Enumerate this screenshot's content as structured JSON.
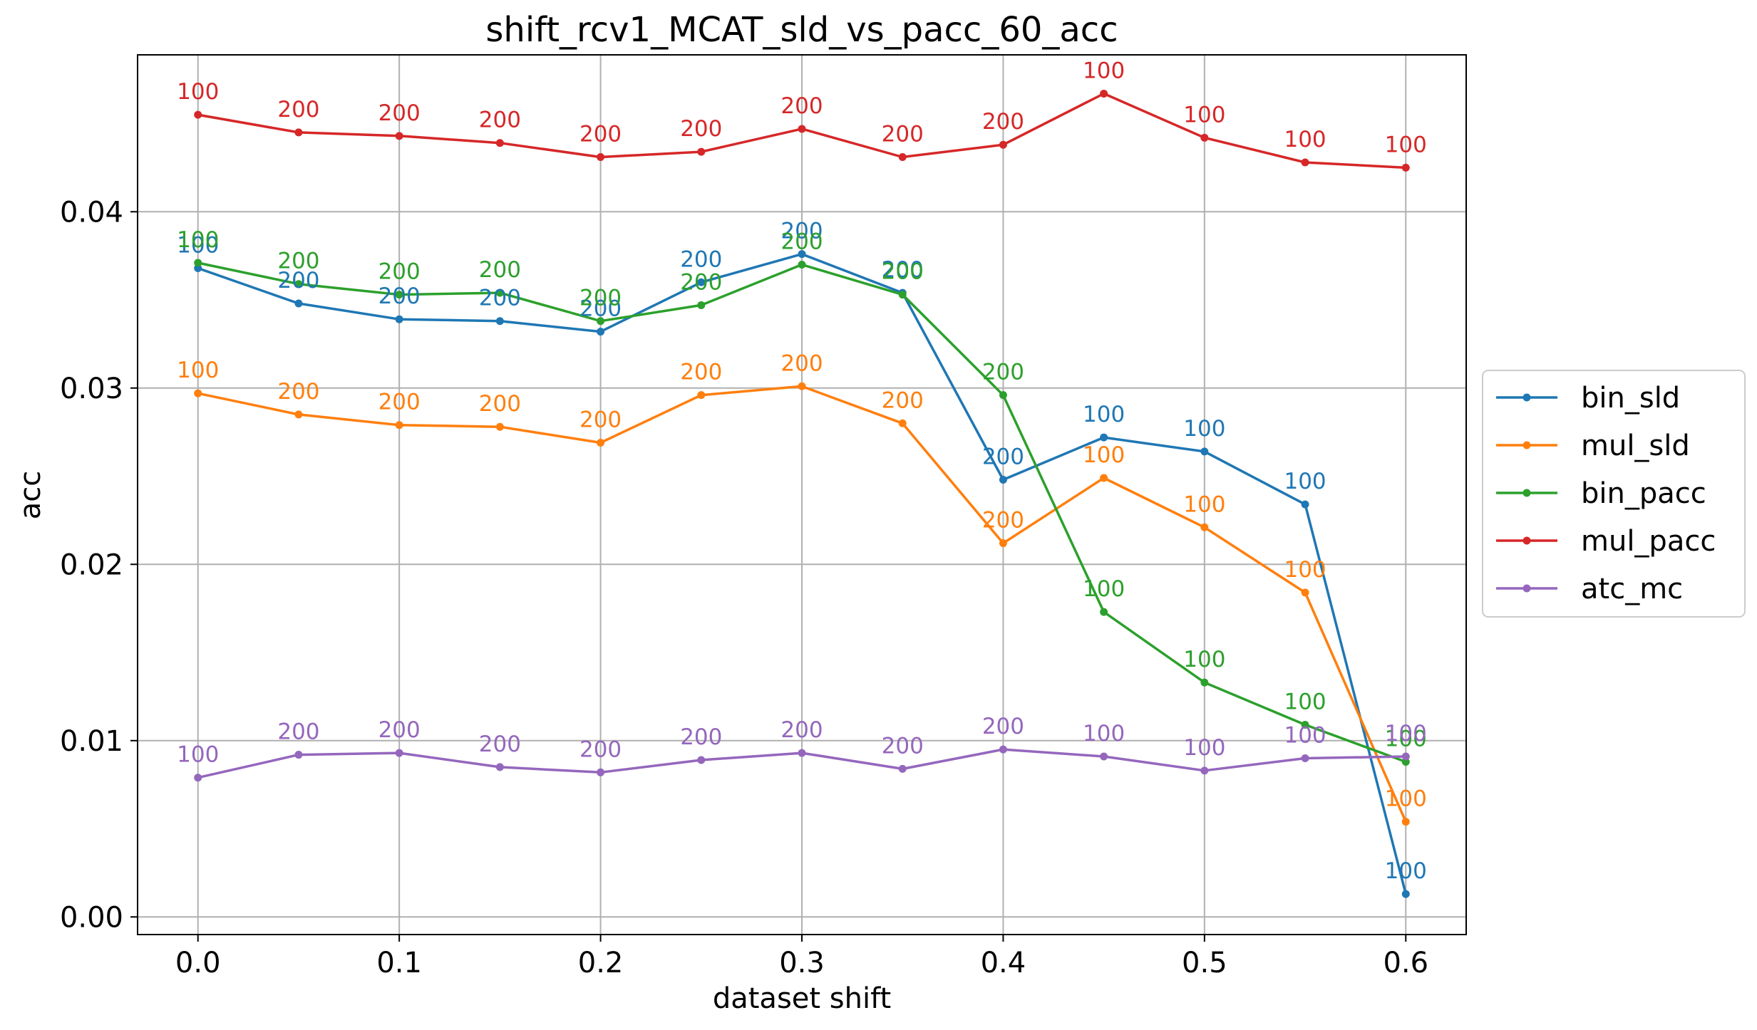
{
  "chart_data": {
    "type": "line",
    "title": "shift_rcv1_MCAT_sld_vs_pacc_60_acc",
    "xlabel": "dataset shift",
    "ylabel": "acc",
    "x": [
      0.0,
      0.05,
      0.1,
      0.15,
      0.2,
      0.25,
      0.3,
      0.35,
      0.4,
      0.45,
      0.5,
      0.55,
      0.6
    ],
    "xlim": [
      -0.03,
      0.63
    ],
    "ylim": [
      -0.001,
      0.0489
    ],
    "xticks": [
      0.0,
      0.1,
      0.2,
      0.3,
      0.4,
      0.5,
      0.6
    ],
    "xtick_labels": [
      "0.0",
      "0.1",
      "0.2",
      "0.3",
      "0.4",
      "0.5",
      "0.6"
    ],
    "yticks": [
      0.0,
      0.01,
      0.02,
      0.03,
      0.04
    ],
    "ytick_labels": [
      "0.00",
      "0.01",
      "0.02",
      "0.03",
      "0.04"
    ],
    "grid": true,
    "legend_position": "outside-right",
    "series": [
      {
        "name": "bin_sld",
        "color": "#1f77b4",
        "values": [
          0.0368,
          0.0348,
          0.0339,
          0.0338,
          0.0332,
          0.036,
          0.0376,
          0.0354,
          0.0248,
          0.0272,
          0.0264,
          0.0234,
          0.0013
        ],
        "labels": [
          "100",
          "200",
          "200",
          "200",
          "200",
          "200",
          "200",
          "200",
          "200",
          "100",
          "100",
          "100",
          "100"
        ]
      },
      {
        "name": "mul_sld",
        "color": "#ff7f0e",
        "values": [
          0.0297,
          0.0285,
          0.0279,
          0.0278,
          0.0269,
          0.0296,
          0.0301,
          0.028,
          0.0212,
          0.0249,
          0.0221,
          0.0184,
          0.0054
        ],
        "labels": [
          "100",
          "200",
          "200",
          "200",
          "200",
          "200",
          "200",
          "200",
          "200",
          "100",
          "100",
          "100",
          "100"
        ]
      },
      {
        "name": "bin_pacc",
        "color": "#2ca02c",
        "values": [
          0.0371,
          0.0359,
          0.0353,
          0.0354,
          0.0338,
          0.0347,
          0.037,
          0.0353,
          0.0296,
          0.0173,
          0.0133,
          0.0109,
          0.0088
        ],
        "labels": [
          "100",
          "200",
          "200",
          "200",
          "200",
          "200",
          "200",
          "200",
          "200",
          "100",
          "100",
          "100",
          "100"
        ]
      },
      {
        "name": "mul_pacc",
        "color": "#d62728",
        "values": [
          0.0455,
          0.0445,
          0.0443,
          0.0439,
          0.0431,
          0.0434,
          0.0447,
          0.0431,
          0.0438,
          0.0467,
          0.0442,
          0.0428,
          0.0425
        ],
        "labels": [
          "100",
          "200",
          "200",
          "200",
          "200",
          "200",
          "200",
          "200",
          "200",
          "100",
          "100",
          "100",
          "100"
        ]
      },
      {
        "name": "atc_mc",
        "color": "#9467bd",
        "values": [
          0.0079,
          0.0092,
          0.0093,
          0.0085,
          0.0082,
          0.0089,
          0.0093,
          0.0084,
          0.0095,
          0.0091,
          0.0083,
          0.009,
          0.0091
        ],
        "labels": [
          "100",
          "200",
          "200",
          "200",
          "200",
          "200",
          "200",
          "200",
          "200",
          "100",
          "100",
          "100",
          "100"
        ]
      }
    ]
  }
}
